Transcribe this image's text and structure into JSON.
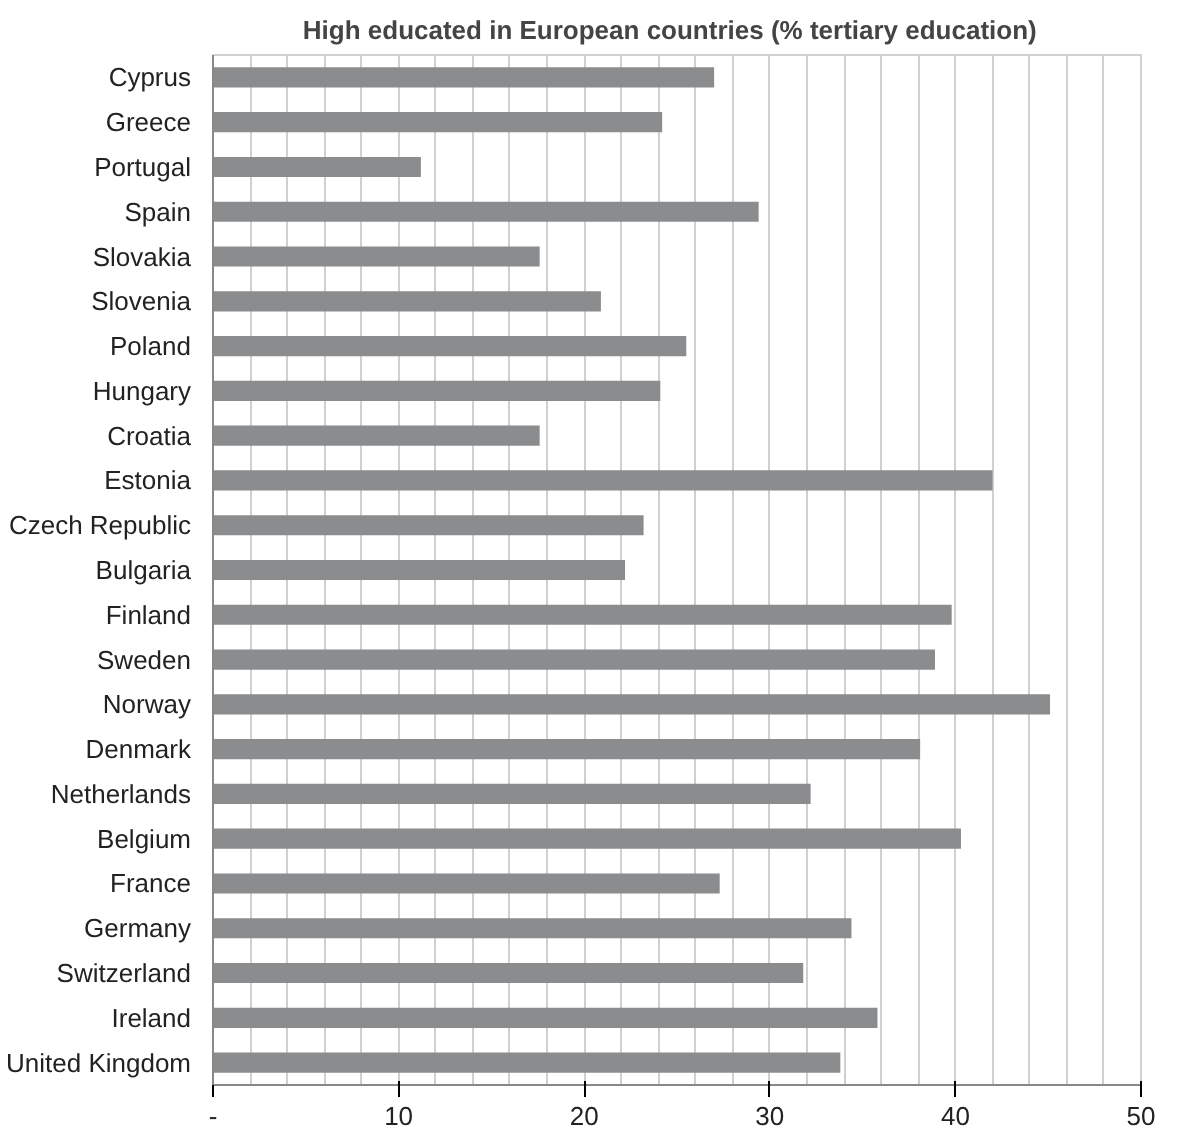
{
  "chart_data": {
    "type": "bar",
    "orientation": "horizontal",
    "title": "High educated  in European countries (% tertiary  education)",
    "categories": [
      "Cyprus",
      "Greece",
      "Portugal",
      "Spain",
      "Slovakia",
      "Slovenia",
      "Poland",
      "Hungary",
      "Croatia",
      "Estonia",
      "Czech Republic",
      "Bulgaria",
      "Finland",
      "Sweden",
      "Norway",
      "Denmark",
      "Netherlands",
      "Belgium",
      "France",
      "Germany",
      "Switzerland",
      "Ireland",
      "United Kingdom"
    ],
    "values": [
      27.0,
      24.2,
      11.2,
      29.4,
      17.6,
      20.9,
      25.5,
      24.1,
      17.6,
      42.0,
      23.2,
      22.2,
      39.8,
      38.9,
      45.1,
      38.1,
      32.2,
      40.3,
      27.3,
      34.4,
      31.8,
      35.8,
      33.8
    ],
    "color": "#8b8c8e",
    "xlim": [
      0,
      50
    ],
    "xticks": [
      {
        "value": 0,
        "label": "-"
      },
      {
        "value": 2,
        "label": null
      },
      {
        "value": 4,
        "label": null
      },
      {
        "value": 6,
        "label": null
      },
      {
        "value": 8,
        "label": null
      },
      10,
      {
        "value": 12,
        "label": null
      },
      {
        "value": 14,
        "label": null
      },
      {
        "value": 16,
        "label": null
      },
      {
        "value": 18,
        "label": null
      },
      20,
      {
        "value": 22,
        "label": null
      },
      {
        "value": 24,
        "label": null
      },
      {
        "value": 26,
        "label": null
      },
      {
        "value": 28,
        "label": null
      },
      30,
      {
        "value": 32,
        "label": null
      },
      {
        "value": 34,
        "label": null
      },
      {
        "value": 36,
        "label": null
      },
      {
        "value": 38,
        "label": null
      },
      40,
      {
        "value": 42,
        "label": null
      },
      {
        "value": 44,
        "label": null
      },
      {
        "value": 46,
        "label": null
      },
      {
        "value": 48,
        "label": null
      },
      50
    ],
    "grid": "x"
  }
}
